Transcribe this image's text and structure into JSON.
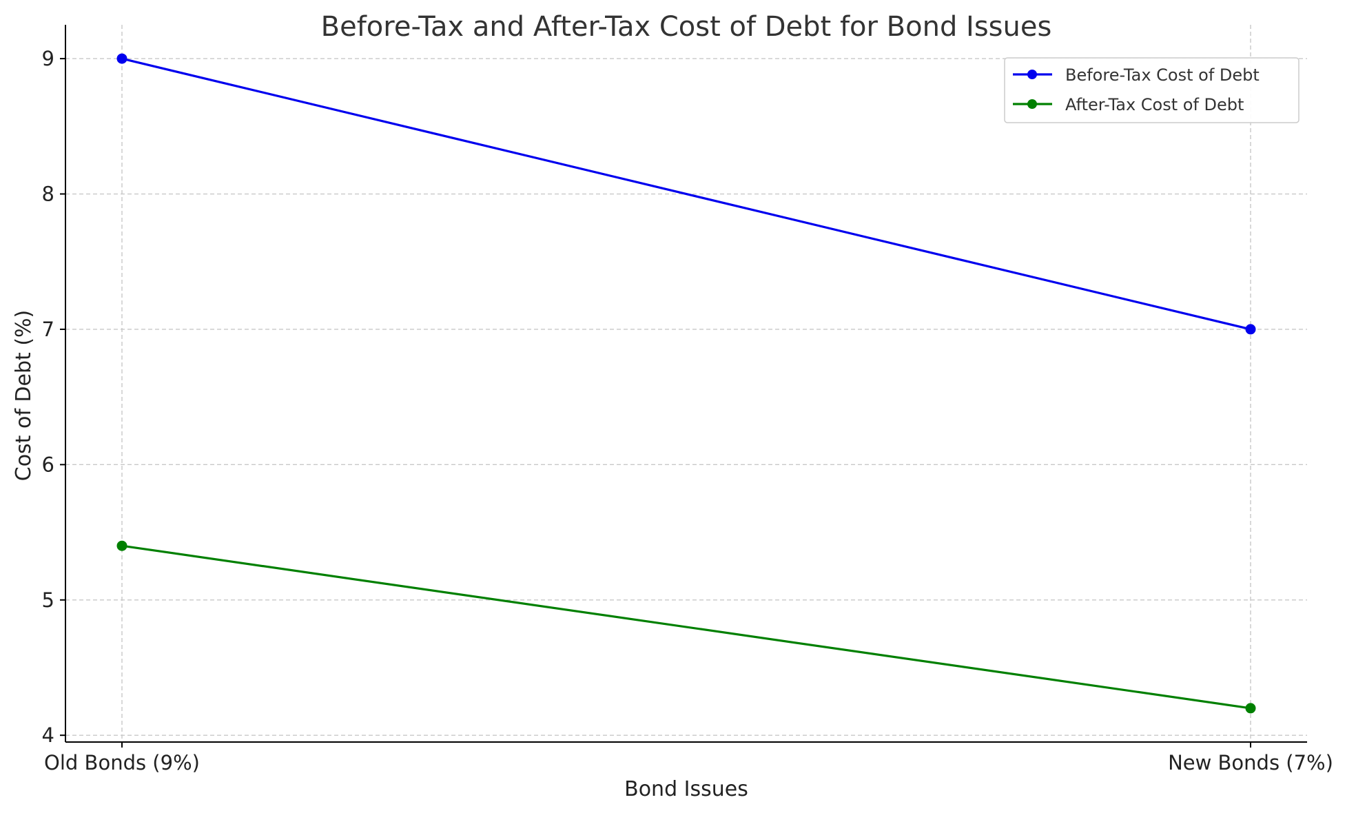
{
  "chart_data": {
    "type": "line",
    "title": "Before-Tax and After-Tax Cost of Debt for Bond Issues",
    "xlabel": "Bond Issues",
    "ylabel": "Cost of Debt (%)",
    "categories": [
      "Old Bonds (9%)",
      "New Bonds (7%)"
    ],
    "yticks": [
      4,
      5,
      6,
      7,
      8,
      9
    ],
    "ylim": [
      3.95,
      9.25
    ],
    "grid": true,
    "legend_position": "top-right",
    "series": [
      {
        "name": "Before-Tax Cost of Debt",
        "values": [
          9.0,
          7.0
        ],
        "color": "#0000ee"
      },
      {
        "name": "After-Tax Cost of Debt",
        "values": [
          5.4,
          4.2
        ],
        "color": "#008000"
      }
    ]
  }
}
